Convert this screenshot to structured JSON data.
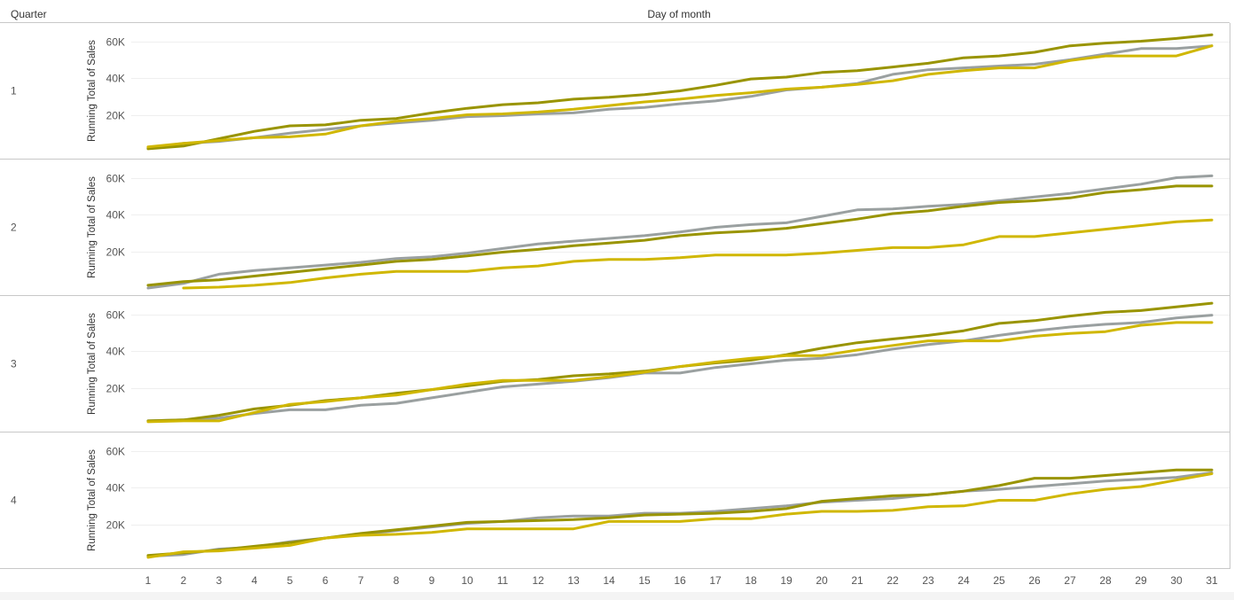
{
  "header": {
    "row_title": "Quarter",
    "column_title": "Day of month"
  },
  "colors": {
    "gray": "#9aa0a0",
    "olive": "#999400",
    "yellow": "#d0b700"
  },
  "chart_data": {
    "type": "line",
    "x": [
      1,
      2,
      3,
      4,
      5,
      6,
      7,
      8,
      9,
      10,
      11,
      12,
      13,
      14,
      15,
      16,
      17,
      18,
      19,
      20,
      21,
      22,
      23,
      24,
      25,
      26,
      27,
      28,
      29,
      30,
      31
    ],
    "ylabel": "Running Total of Sales",
    "yticks": [
      "20K",
      "40K",
      "60K"
    ],
    "ylim": [
      0,
      67000
    ],
    "panels": [
      {
        "quarter": "1",
        "series": [
          {
            "color": "gray",
            "values": [
              2000,
              4500,
              5500,
              7500,
              10000,
              12000,
              14000,
              15500,
              17000,
              19000,
              19500,
              20500,
              21000,
              23000,
              24000,
              26000,
              27500,
              30000,
              33500,
              35000,
              37000,
              42000,
              44500,
              45500,
              46500,
              47500,
              50000,
              53000,
              56000,
              56000,
              57500
            ]
          },
          {
            "color": "olive",
            "values": [
              1500,
              3000,
              7000,
              11000,
              14000,
              14500,
              17000,
              18000,
              21000,
              23500,
              25500,
              26500,
              28500,
              29500,
              31000,
              33000,
              36000,
              39500,
              40500,
              43000,
              44000,
              46000,
              48000,
              51000,
              52000,
              54000,
              57500,
              59000,
              60000,
              61500,
              63500
            ]
          },
          {
            "color": "yellow",
            "values": [
              2500,
              4500,
              6000,
              7500,
              8000,
              9500,
              14000,
              16500,
              18000,
              20000,
              20500,
              21500,
              23000,
              25000,
              27000,
              28500,
              30500,
              32000,
              34000,
              35000,
              36500,
              38500,
              42000,
              44000,
              45500,
              45500,
              49500,
              52000,
              52000,
              52000,
              57500
            ]
          }
        ]
      },
      {
        "quarter": "2",
        "series": [
          {
            "color": "gray",
            "values": [
              0,
              2500,
              7500,
              9500,
              11000,
              12500,
              14000,
              16000,
              17000,
              19000,
              21500,
              24000,
              25500,
              27000,
              28500,
              30500,
              33000,
              34500,
              35500,
              39000,
              42500,
              43000,
              44500,
              45500,
              47500,
              49500,
              51500,
              54000,
              56500,
              60000,
              61000
            ]
          },
          {
            "color": "olive",
            "values": [
              1500,
              3500,
              4500,
              6500,
              8500,
              10500,
              12500,
              14500,
              15500,
              17500,
              19500,
              21000,
              23000,
              24500,
              26000,
              28500,
              30000,
              31000,
              32500,
              35000,
              37500,
              40500,
              42000,
              44500,
              46500,
              47500,
              49000,
              52000,
              53500,
              55500,
              55500
            ]
          },
          {
            "color": "yellow",
            "values": [
              null,
              0,
              500,
              1500,
              3000,
              5500,
              7500,
              9000,
              9000,
              9000,
              11000,
              12000,
              14500,
              15500,
              15500,
              16500,
              18000,
              18000,
              18000,
              19000,
              20500,
              22000,
              22000,
              23500,
              28000,
              28000,
              30000,
              32000,
              34000,
              36000,
              37000
            ]
          }
        ]
      },
      {
        "quarter": "3",
        "series": [
          {
            "color": "gray",
            "values": [
              2000,
              2500,
              3500,
              6000,
              8000,
              8000,
              10500,
              11500,
              14500,
              17500,
              20500,
              22000,
              23500,
              25500,
              28000,
              28000,
              31000,
              33000,
              35000,
              36000,
              38000,
              41000,
              43500,
              45500,
              48500,
              51000,
              53000,
              54500,
              55500,
              58000,
              59500
            ]
          },
          {
            "color": "olive",
            "values": [
              2000,
              2500,
              5000,
              8500,
              10500,
              13000,
              14500,
              17000,
              19000,
              21000,
              23500,
              24500,
              26500,
              27500,
              29000,
              31500,
              33500,
              35000,
              38000,
              41500,
              44500,
              46500,
              48500,
              51000,
              55000,
              56500,
              59000,
              61000,
              62000,
              64000,
              66000
            ]
          },
          {
            "color": "yellow",
            "values": [
              1500,
              2000,
              2000,
              6500,
              11000,
              12500,
              14500,
              16000,
              19000,
              22000,
              24000,
              24000,
              24000,
              26000,
              28500,
              31500,
              34000,
              36000,
              37500,
              37500,
              40500,
              43000,
              45500,
              45500,
              45500,
              48000,
              49500,
              50500,
              54000,
              55500,
              55500
            ]
          }
        ]
      },
      {
        "quarter": "4",
        "series": [
          {
            "color": "gray",
            "values": [
              2500,
              3500,
              6500,
              7500,
              10500,
              12500,
              14500,
              16500,
              18500,
              20500,
              21500,
              23500,
              24500,
              24500,
              26000,
              26000,
              27000,
              28500,
              30000,
              32000,
              33000,
              34000,
              36000,
              38000,
              39000,
              40500,
              42000,
              43500,
              44500,
              45500,
              48000
            ]
          },
          {
            "color": "olive",
            "values": [
              3000,
              4500,
              6000,
              8000,
              10000,
              12500,
              15000,
              17000,
              19000,
              21000,
              21500,
              22000,
              22500,
              23500,
              25000,
              25500,
              26000,
              27000,
              28500,
              32500,
              34000,
              35500,
              36000,
              38000,
              41000,
              45000,
              45000,
              46500,
              48000,
              49500,
              49500
            ]
          },
          {
            "color": "yellow",
            "values": [
              2000,
              5000,
              5500,
              7000,
              8500,
              12500,
              14000,
              14500,
              15500,
              17500,
              17500,
              17500,
              17500,
              21500,
              21500,
              21500,
              23000,
              23000,
              25500,
              27000,
              27000,
              27500,
              29500,
              30000,
              33000,
              33000,
              36500,
              39000,
              40500,
              44000,
              47500
            ]
          }
        ]
      }
    ]
  }
}
